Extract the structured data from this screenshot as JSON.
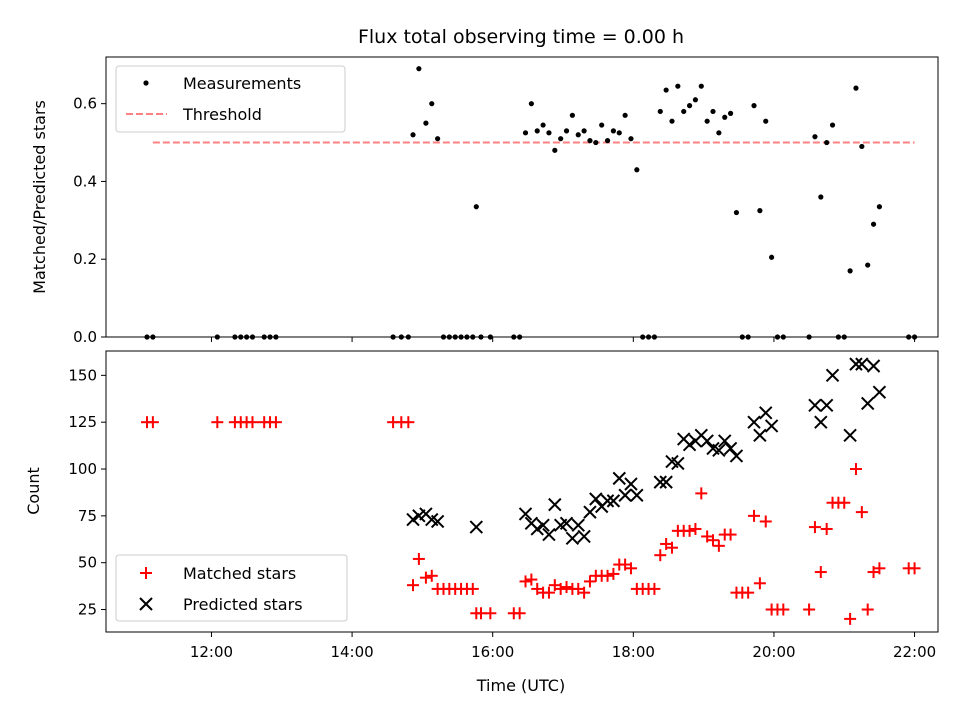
{
  "title": "Flux total observing time = 0.00 h",
  "chart_data": [
    {
      "type": "scatter",
      "ylabel": "Matched/Predicted stars",
      "ylim": [
        0,
        0.72
      ],
      "yticks": [
        "0.0",
        "0.2",
        "0.4",
        "0.6"
      ],
      "ytick_values": [
        0,
        0.2,
        0.4,
        0.6
      ],
      "legend": {
        "position": "top-left",
        "entries": [
          "Measurements",
          "Threshold"
        ]
      },
      "threshold": {
        "name": "Threshold",
        "value": 0.5,
        "x_start": "11:10",
        "x_end": "22:00",
        "color": "#ff8080"
      },
      "series": [
        {
          "name": "Measurements",
          "color": "#000000",
          "points": [
            [
              "11:05",
              0
            ],
            [
              "11:10",
              0
            ],
            [
              "12:05",
              0
            ],
            [
              "12:20",
              0
            ],
            [
              "12:25",
              0
            ],
            [
              "12:30",
              0
            ],
            [
              "12:35",
              0
            ],
            [
              "12:45",
              0
            ],
            [
              "12:50",
              0
            ],
            [
              "12:55",
              0
            ],
            [
              "14:35",
              0
            ],
            [
              "14:42",
              0
            ],
            [
              "14:48",
              0
            ],
            [
              "14:52",
              0.52
            ],
            [
              "14:57",
              0.69
            ],
            [
              "15:03",
              0.55
            ],
            [
              "15:08",
              0.6
            ],
            [
              "15:13",
              0.51
            ],
            [
              "15:18",
              0
            ],
            [
              "15:23",
              0
            ],
            [
              "15:28",
              0
            ],
            [
              "15:33",
              0
            ],
            [
              "15:38",
              0
            ],
            [
              "15:43",
              0
            ],
            [
              "15:46",
              0.335
            ],
            [
              "15:50",
              0
            ],
            [
              "15:58",
              0
            ],
            [
              "16:18",
              0
            ],
            [
              "16:23",
              0
            ],
            [
              "16:28",
              0.525
            ],
            [
              "16:33",
              0.6
            ],
            [
              "16:38",
              0.53
            ],
            [
              "16:43",
              0.545
            ],
            [
              "16:48",
              0.525
            ],
            [
              "16:53",
              0.48
            ],
            [
              "16:58",
              0.51
            ],
            [
              "17:03",
              0.53
            ],
            [
              "17:08",
              0.57
            ],
            [
              "17:13",
              0.52
            ],
            [
              "17:18",
              0.53
            ],
            [
              "17:23",
              0.505
            ],
            [
              "17:28",
              0.5
            ],
            [
              "17:33",
              0.545
            ],
            [
              "17:38",
              0.505
            ],
            [
              "17:43",
              0.53
            ],
            [
              "17:48",
              0.525
            ],
            [
              "17:53",
              0.57
            ],
            [
              "17:58",
              0.51
            ],
            [
              "18:03",
              0.43
            ],
            [
              "18:08",
              0
            ],
            [
              "18:13",
              0
            ],
            [
              "18:18",
              0
            ],
            [
              "18:23",
              0.58
            ],
            [
              "18:28",
              0.635
            ],
            [
              "18:33",
              0.555
            ],
            [
              "18:38",
              0.645
            ],
            [
              "18:43",
              0.58
            ],
            [
              "18:48",
              0.595
            ],
            [
              "18:53",
              0.61
            ],
            [
              "18:58",
              0.645
            ],
            [
              "19:03",
              0.555
            ],
            [
              "19:08",
              0.58
            ],
            [
              "19:13",
              0.525
            ],
            [
              "19:18",
              0.565
            ],
            [
              "19:23",
              0.575
            ],
            [
              "19:28",
              0.32
            ],
            [
              "19:33",
              0
            ],
            [
              "19:38",
              0
            ],
            [
              "19:43",
              0.595
            ],
            [
              "19:48",
              0.325
            ],
            [
              "19:53",
              0.555
            ],
            [
              "19:58",
              0.205
            ],
            [
              "20:03",
              0
            ],
            [
              "20:08",
              0
            ],
            [
              "20:30",
              0
            ],
            [
              "20:35",
              0.515
            ],
            [
              "20:40",
              0.36
            ],
            [
              "20:45",
              0.5
            ],
            [
              "20:50",
              0.545
            ],
            [
              "20:55",
              0
            ],
            [
              "21:00",
              0
            ],
            [
              "21:05",
              0.17
            ],
            [
              "21:10",
              0.64
            ],
            [
              "21:15",
              0.49
            ],
            [
              "21:20",
              0.185
            ],
            [
              "21:25",
              0.29
            ],
            [
              "21:30",
              0.335
            ],
            [
              "21:55",
              0
            ],
            [
              "22:00",
              0
            ]
          ]
        }
      ]
    },
    {
      "type": "scatter",
      "ylabel": "Count",
      "xlabel": "Time (UTC)",
      "ylim": [
        13,
        163
      ],
      "yticks": [
        "25",
        "50",
        "75",
        "100",
        "125",
        "150"
      ],
      "ytick_values": [
        25,
        50,
        75,
        100,
        125,
        150
      ],
      "xlim": [
        "10:30",
        "22:20"
      ],
      "xticks": [
        "12:00",
        "14:00",
        "16:00",
        "18:00",
        "20:00",
        "22:00"
      ],
      "legend": {
        "position": "bottom-left",
        "entries": [
          "Matched stars",
          "Predicted stars"
        ]
      },
      "series": [
        {
          "name": "Matched stars",
          "color": "#ff0000",
          "marker": "plus",
          "points": [
            [
              "11:05",
              125
            ],
            [
              "11:10",
              125
            ],
            [
              "12:05",
              125
            ],
            [
              "12:20",
              125
            ],
            [
              "12:25",
              125
            ],
            [
              "12:30",
              125
            ],
            [
              "12:35",
              125
            ],
            [
              "12:45",
              125
            ],
            [
              "12:50",
              125
            ],
            [
              "12:55",
              125
            ],
            [
              "14:35",
              125
            ],
            [
              "14:42",
              125
            ],
            [
              "14:48",
              125
            ],
            [
              "14:52",
              38
            ],
            [
              "14:57",
              52
            ],
            [
              "15:03",
              42
            ],
            [
              "15:08",
              43
            ],
            [
              "15:13",
              36
            ],
            [
              "15:18",
              36
            ],
            [
              "15:23",
              36
            ],
            [
              "15:28",
              36
            ],
            [
              "15:33",
              36
            ],
            [
              "15:38",
              36
            ],
            [
              "15:43",
              36
            ],
            [
              "15:46",
              23
            ],
            [
              "15:50",
              23
            ],
            [
              "15:58",
              23
            ],
            [
              "16:18",
              23
            ],
            [
              "16:23",
              23
            ],
            [
              "16:28",
              40
            ],
            [
              "16:33",
              41
            ],
            [
              "16:38",
              36
            ],
            [
              "16:43",
              34
            ],
            [
              "16:48",
              34
            ],
            [
              "16:53",
              38
            ],
            [
              "16:58",
              36
            ],
            [
              "17:03",
              37
            ],
            [
              "17:08",
              36
            ],
            [
              "17:13",
              36
            ],
            [
              "17:18",
              34
            ],
            [
              "17:23",
              40
            ],
            [
              "17:28",
              43
            ],
            [
              "17:33",
              43
            ],
            [
              "17:38",
              43
            ],
            [
              "17:43",
              44
            ],
            [
              "17:48",
              49
            ],
            [
              "17:53",
              49
            ],
            [
              "17:58",
              47
            ],
            [
              "18:03",
              36
            ],
            [
              "18:08",
              36
            ],
            [
              "18:13",
              36
            ],
            [
              "18:18",
              36
            ],
            [
              "18:23",
              54
            ],
            [
              "18:28",
              60
            ],
            [
              "18:33",
              58
            ],
            [
              "18:38",
              67
            ],
            [
              "18:43",
              67
            ],
            [
              "18:48",
              67
            ],
            [
              "18:53",
              68
            ],
            [
              "18:58",
              87
            ],
            [
              "19:03",
              64
            ],
            [
              "19:08",
              62
            ],
            [
              "19:13",
              59
            ],
            [
              "19:18",
              65
            ],
            [
              "19:23",
              65
            ],
            [
              "19:28",
              34
            ],
            [
              "19:33",
              34
            ],
            [
              "19:38",
              34
            ],
            [
              "19:43",
              75
            ],
            [
              "19:48",
              39
            ],
            [
              "19:53",
              72
            ],
            [
              "19:58",
              25
            ],
            [
              "20:03",
              25
            ],
            [
              "20:08",
              25
            ],
            [
              "20:30",
              25
            ],
            [
              "20:35",
              69
            ],
            [
              "20:40",
              45
            ],
            [
              "20:45",
              68
            ],
            [
              "20:50",
              82
            ],
            [
              "20:55",
              82
            ],
            [
              "21:00",
              82
            ],
            [
              "21:05",
              20
            ],
            [
              "21:10",
              100
            ],
            [
              "21:15",
              77
            ],
            [
              "21:20",
              25
            ],
            [
              "21:25",
              45
            ],
            [
              "21:30",
              47
            ],
            [
              "21:55",
              47
            ],
            [
              "22:00",
              47
            ]
          ]
        },
        {
          "name": "Predicted stars",
          "color": "#000000",
          "marker": "x",
          "points": [
            [
              "14:52",
              73
            ],
            [
              "14:57",
              75
            ],
            [
              "15:03",
              76
            ],
            [
              "15:08",
              73
            ],
            [
              "15:13",
              72
            ],
            [
              "15:46",
              69
            ],
            [
              "16:28",
              76
            ],
            [
              "16:33",
              71
            ],
            [
              "16:38",
              68
            ],
            [
              "16:43",
              70
            ],
            [
              "16:48",
              65
            ],
            [
              "16:53",
              81
            ],
            [
              "16:58",
              70
            ],
            [
              "17:03",
              71
            ],
            [
              "17:08",
              63
            ],
            [
              "17:13",
              70
            ],
            [
              "17:18",
              64
            ],
            [
              "17:23",
              77
            ],
            [
              "17:28",
              84
            ],
            [
              "17:33",
              80
            ],
            [
              "17:38",
              83
            ],
            [
              "17:43",
              83
            ],
            [
              "17:48",
              95
            ],
            [
              "17:53",
              86
            ],
            [
              "17:58",
              92
            ],
            [
              "18:03",
              86
            ],
            [
              "18:23",
              93
            ],
            [
              "18:28",
              93
            ],
            [
              "18:33",
              104
            ],
            [
              "18:38",
              103
            ],
            [
              "18:43",
              116
            ],
            [
              "18:48",
              113
            ],
            [
              "18:53",
              115
            ],
            [
              "18:58",
              118
            ],
            [
              "19:03",
              115
            ],
            [
              "19:08",
              111
            ],
            [
              "19:13",
              110
            ],
            [
              "19:18",
              115
            ],
            [
              "19:23",
              111
            ],
            [
              "19:28",
              107
            ],
            [
              "19:43",
              125
            ],
            [
              "19:48",
              118
            ],
            [
              "19:53",
              130
            ],
            [
              "19:58",
              123
            ],
            [
              "20:35",
              134
            ],
            [
              "20:40",
              125
            ],
            [
              "20:45",
              134
            ],
            [
              "20:50",
              150
            ],
            [
              "21:05",
              118
            ],
            [
              "21:10",
              156
            ],
            [
              "21:15",
              156
            ],
            [
              "21:20",
              135
            ],
            [
              "21:25",
              155
            ],
            [
              "21:30",
              141
            ]
          ]
        }
      ]
    }
  ]
}
